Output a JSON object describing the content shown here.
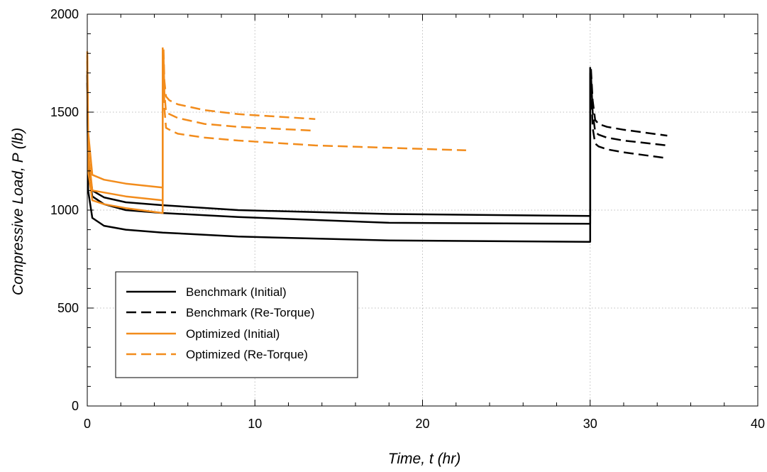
{
  "chart_data": {
    "type": "line",
    "xlabel": "Time, t (hr)",
    "ylabel": "Compressive Load, P (lb)",
    "xlim": [
      0,
      40
    ],
    "ylim": [
      0,
      2000
    ],
    "x_ticks": [
      0,
      10,
      20,
      30,
      40
    ],
    "y_ticks": [
      0,
      500,
      1000,
      1500,
      2000
    ],
    "grid": true,
    "legend_position": "bottom-left",
    "colors": {
      "benchmark": "#000000",
      "optimized": "#f28c1c"
    },
    "legend": [
      {
        "label": "Benchmark (Initial)",
        "color": "#000000",
        "dash": "solid"
      },
      {
        "label": "Benchmark (Re-Torque)",
        "color": "#000000",
        "dash": "dashed"
      },
      {
        "label": "Optimized (Initial)",
        "color": "#f28c1c",
        "dash": "solid"
      },
      {
        "label": "Optimized (Re-Torque)",
        "color": "#f28c1c",
        "dash": "dashed"
      }
    ],
    "series": [
      {
        "group": "Benchmark (Initial)",
        "color": "#000000",
        "dash": "solid",
        "x": [
          0,
          0.05,
          0.3,
          1,
          2.3,
          4.5,
          9,
          18,
          30,
          30
        ],
        "y": [
          1710,
          1250,
          1100,
          1065,
          1040,
          1025,
          1000,
          980,
          970,
          1730
        ]
      },
      {
        "group": "Benchmark (Initial)",
        "color": "#000000",
        "dash": "solid",
        "x": [
          0,
          0.05,
          0.3,
          1,
          2.3,
          4.5,
          9,
          18,
          30,
          30
        ],
        "y": [
          1690,
          1200,
          1070,
          1030,
          1000,
          985,
          965,
          935,
          930,
          1700
        ]
      },
      {
        "group": "Benchmark (Initial)",
        "color": "#000000",
        "dash": "solid",
        "x": [
          0,
          0.05,
          0.3,
          1,
          2.3,
          4.5,
          9,
          18,
          30,
          30
        ],
        "y": [
          1650,
          1100,
          960,
          920,
          900,
          885,
          865,
          845,
          838,
          1650
        ]
      },
      {
        "group": "Benchmark (Re-Torque)",
        "color": "#000000",
        "dash": "dashed",
        "x": [
          30.05,
          30.15,
          30.3,
          30.5,
          31,
          32,
          34.6
        ],
        "y": [
          1720,
          1560,
          1460,
          1440,
          1425,
          1410,
          1380
        ]
      },
      {
        "group": "Benchmark (Re-Torque)",
        "color": "#000000",
        "dash": "dashed",
        "x": [
          30.05,
          30.15,
          30.3,
          30.5,
          31,
          32,
          34.6
        ],
        "y": [
          1690,
          1500,
          1400,
          1385,
          1370,
          1355,
          1330
        ]
      },
      {
        "group": "Benchmark (Re-Torque)",
        "color": "#000000",
        "dash": "dashed",
        "x": [
          30.05,
          30.15,
          30.3,
          30.5,
          31,
          32,
          34.6
        ],
        "y": [
          1640,
          1420,
          1340,
          1325,
          1310,
          1295,
          1265
        ]
      },
      {
        "group": "Optimized (Initial)",
        "color": "#f28c1c",
        "dash": "solid",
        "x": [
          0,
          0.05,
          0.3,
          1,
          2.3,
          4.5,
          4.5
        ],
        "y": [
          1810,
          1400,
          1180,
          1155,
          1135,
          1115,
          1830
        ]
      },
      {
        "group": "Optimized (Initial)",
        "color": "#f28c1c",
        "dash": "solid",
        "x": [
          0,
          0.05,
          0.3,
          1,
          2.3,
          4.5,
          4.5
        ],
        "y": [
          1790,
          1300,
          1100,
          1090,
          1070,
          1050,
          1810
        ]
      },
      {
        "group": "Optimized (Initial)",
        "color": "#f28c1c",
        "dash": "solid",
        "x": [
          0,
          0.05,
          0.3,
          1,
          2.3,
          4.5,
          4.5
        ],
        "y": [
          1760,
          1200,
          1050,
          1030,
          1010,
          985,
          1760
        ]
      },
      {
        "group": "Optimized (Re-Torque)",
        "color": "#f28c1c",
        "dash": "dashed",
        "x": [
          4.55,
          4.6,
          4.7,
          4.9,
          5.4,
          7,
          9,
          13.6
        ],
        "y": [
          1820,
          1660,
          1580,
          1560,
          1540,
          1510,
          1490,
          1465
        ]
      },
      {
        "group": "Optimized (Re-Torque)",
        "color": "#f28c1c",
        "dash": "dashed",
        "x": [
          4.55,
          4.6,
          4.7,
          4.9,
          5.4,
          7,
          9,
          13.6
        ],
        "y": [
          1790,
          1600,
          1500,
          1490,
          1470,
          1440,
          1425,
          1405
        ]
      },
      {
        "group": "Optimized (Re-Torque)",
        "color": "#f28c1c",
        "dash": "dashed",
        "x": [
          4.55,
          4.6,
          4.7,
          4.9,
          5.4,
          7,
          9,
          13.6,
          22.6
        ],
        "y": [
          1750,
          1520,
          1420,
          1410,
          1390,
          1370,
          1355,
          1330,
          1305
        ]
      }
    ]
  }
}
